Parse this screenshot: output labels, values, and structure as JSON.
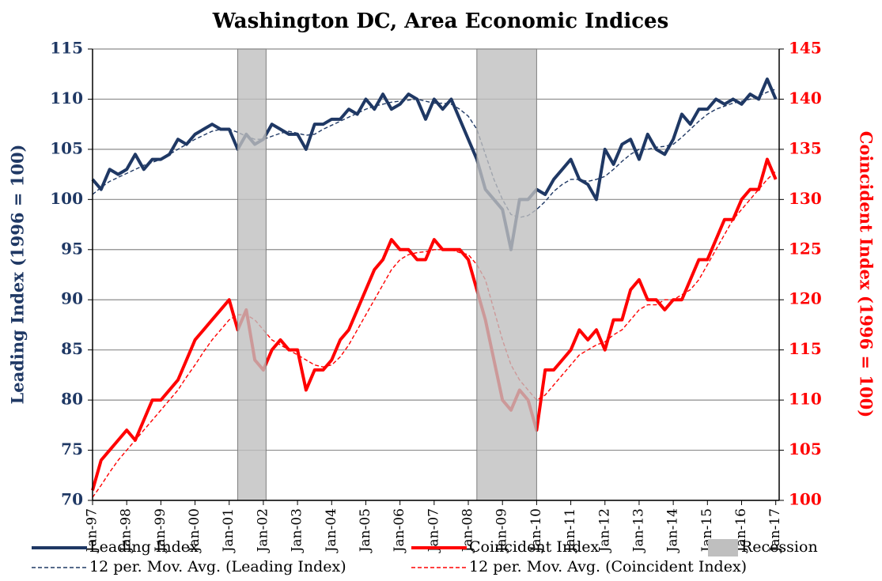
{
  "chart_data": {
    "type": "line",
    "title": "Washington DC, Area Economic Indices",
    "y_label": "Leading Index (1996 = 100)",
    "y2_label": "Coincident Index (1996 = 100)",
    "x": [
      1997,
      1997.25,
      1997.5,
      1997.75,
      1998,
      1998.25,
      1998.5,
      1998.75,
      1999,
      1999.25,
      1999.5,
      1999.75,
      2000,
      2000.25,
      2000.5,
      2000.75,
      2001,
      2001.25,
      2001.5,
      2001.75,
      2002,
      2002.25,
      2002.5,
      2002.75,
      2003,
      2003.25,
      2003.5,
      2003.75,
      2004,
      2004.25,
      2004.5,
      2004.75,
      2005,
      2005.25,
      2005.5,
      2005.75,
      2006,
      2006.25,
      2006.5,
      2006.75,
      2007,
      2007.25,
      2007.5,
      2007.75,
      2008,
      2008.25,
      2008.5,
      2008.75,
      2009,
      2009.25,
      2009.5,
      2009.75,
      2010,
      2010.25,
      2010.5,
      2010.75,
      2011,
      2011.25,
      2011.5,
      2011.75,
      2012,
      2012.25,
      2012.5,
      2012.75,
      2013,
      2013.25,
      2013.5,
      2013.75,
      2014,
      2014.25,
      2014.5,
      2014.75,
      2015,
      2015.25,
      2015.5,
      2015.75,
      2016,
      2016.25,
      2016.5,
      2016.75,
      2017
    ],
    "series": [
      {
        "name": "Leading Index",
        "color": "#1f3864",
        "dashed": false,
        "axis": "y",
        "values": [
          102,
          101,
          103,
          102.5,
          103,
          104.5,
          103,
          104,
          104,
          104.5,
          106,
          105.5,
          106.5,
          107,
          107.5,
          107,
          107,
          105,
          106.5,
          105.5,
          106,
          107.5,
          107,
          106.5,
          106.5,
          105,
          107.5,
          107.5,
          108,
          108,
          109,
          108.5,
          110,
          109,
          110.5,
          109,
          109.5,
          110.5,
          110,
          108,
          110,
          109,
          110,
          108,
          106,
          104,
          101,
          100,
          99,
          95,
          100,
          100,
          101,
          100.5,
          102,
          103,
          104,
          102,
          101.5,
          100,
          105,
          103.5,
          105.5,
          106,
          104,
          106.5,
          105,
          104.5,
          106,
          108.5,
          107.5,
          109,
          109,
          110,
          109.5,
          110,
          109.5,
          110.5,
          110,
          112,
          110
        ]
      },
      {
        "name": "Coincident Index",
        "color": "#ff0000",
        "dashed": false,
        "axis": "y2",
        "values": [
          101,
          104,
          105,
          106,
          107,
          106,
          108,
          110,
          110,
          111,
          112,
          114,
          116,
          117,
          118,
          119,
          120,
          117,
          119,
          114,
          113,
          115,
          116,
          115,
          115,
          111,
          113,
          113,
          114,
          116,
          117,
          119,
          121,
          123,
          124,
          126,
          125,
          125,
          124,
          124,
          126,
          125,
          125,
          125,
          124,
          121,
          118,
          114,
          110,
          109,
          111,
          110,
          107,
          113,
          113,
          114,
          115,
          117,
          116,
          117,
          115,
          118,
          118,
          121,
          122,
          120,
          120,
          119,
          120,
          120,
          122,
          124,
          124,
          126,
          128,
          128,
          130,
          131,
          131,
          134,
          132
        ]
      },
      {
        "name": "12 per. Mov. Avg. (Leading Index)",
        "color": "#1f3864",
        "dashed": true,
        "axis": "y",
        "values": [
          100.5,
          101.2,
          101.8,
          102.2,
          102.6,
          103,
          103.4,
          103.7,
          104,
          104.5,
          105,
          105.5,
          106,
          106.4,
          106.8,
          107,
          107,
          106.7,
          106.3,
          106,
          106,
          106.3,
          106.6,
          106.8,
          106.6,
          106.4,
          106.5,
          107,
          107.4,
          107.8,
          108.2,
          108.6,
          109,
          109.3,
          109.5,
          109.7,
          109.8,
          109.9,
          110,
          109.8,
          109.6,
          109.6,
          109.5,
          109,
          108.3,
          107,
          104.5,
          102,
          100,
          98.5,
          98.2,
          98.4,
          99,
          99.8,
          100.8,
          101.5,
          102,
          102,
          101.8,
          102,
          102.3,
          103,
          103.8,
          104.5,
          105,
          105,
          105.2,
          105.3,
          105.5,
          106.2,
          107,
          107.8,
          108.5,
          109,
          109.3,
          109.6,
          109.8,
          110,
          110.3,
          110.7,
          111
        ]
      },
      {
        "name": "12 per. Mov. Avg. (Coincident Index)",
        "color": "#ff0000",
        "dashed": true,
        "axis": "y2",
        "values": [
          100.3,
          101.5,
          102.8,
          104,
          105,
          106,
          107,
          108,
          109,
          110,
          111,
          112.3,
          113.5,
          114.8,
          116,
          117,
          118,
          118.5,
          118.5,
          118,
          117,
          116,
          115.5,
          115,
          114.5,
          114,
          113.5,
          113.3,
          113.5,
          114.3,
          115.5,
          117,
          118.5,
          120,
          121.5,
          123,
          124,
          124.5,
          124.7,
          124.8,
          125,
          125,
          125,
          124.7,
          124.5,
          123.5,
          122,
          119,
          116,
          113.5,
          112,
          111,
          110,
          110.5,
          111.5,
          112.5,
          113.5,
          114.5,
          115,
          115.5,
          115.8,
          116.5,
          117,
          118,
          119,
          119.5,
          119.5,
          120,
          120,
          120.5,
          121,
          122,
          123.5,
          125,
          126.5,
          128,
          129,
          130,
          131,
          132,
          132.8
        ]
      }
    ],
    "recession_label": "Recession",
    "recession_color": "#bfbfbf",
    "recessions": [
      [
        2001.25,
        2002.08
      ],
      [
        2008.25,
        2010.0
      ]
    ],
    "xlim": [
      1997,
      2017.1
    ],
    "xticks": [
      {
        "value": 1997,
        "label": "Jan-97"
      },
      {
        "value": 1998,
        "label": "Jan-98"
      },
      {
        "value": 1999,
        "label": "Jan-99"
      },
      {
        "value": 2000,
        "label": "Jan-00"
      },
      {
        "value": 2001,
        "label": "Jan-01"
      },
      {
        "value": 2002,
        "label": "Jan-02"
      },
      {
        "value": 2003,
        "label": "Jan-03"
      },
      {
        "value": 2004,
        "label": "Jan-04"
      },
      {
        "value": 2005,
        "label": "Jan-05"
      },
      {
        "value": 2006,
        "label": "Jan-06"
      },
      {
        "value": 2007,
        "label": "Jan-07"
      },
      {
        "value": 2008,
        "label": "Jan-08"
      },
      {
        "value": 2009,
        "label": "Jan-09"
      },
      {
        "value": 2010,
        "label": "Jan-10"
      },
      {
        "value": 2011,
        "label": "Jan-11"
      },
      {
        "value": 2012,
        "label": "Jan-12"
      },
      {
        "value": 2013,
        "label": "Jan-13"
      },
      {
        "value": 2014,
        "label": "Jan-14"
      },
      {
        "value": 2015,
        "label": "Jan-15"
      },
      {
        "value": 2016,
        "label": "Jan-16"
      },
      {
        "value": 2017,
        "label": "Jan-17"
      }
    ],
    "ylim": [
      70,
      115
    ],
    "yticks": [
      70,
      75,
      80,
      85,
      90,
      95,
      100,
      105,
      110,
      115
    ],
    "y2lim": [
      100,
      145
    ],
    "y2ticks": [
      100,
      105,
      110,
      115,
      120,
      125,
      130,
      135,
      140,
      145
    ],
    "grid": true
  }
}
